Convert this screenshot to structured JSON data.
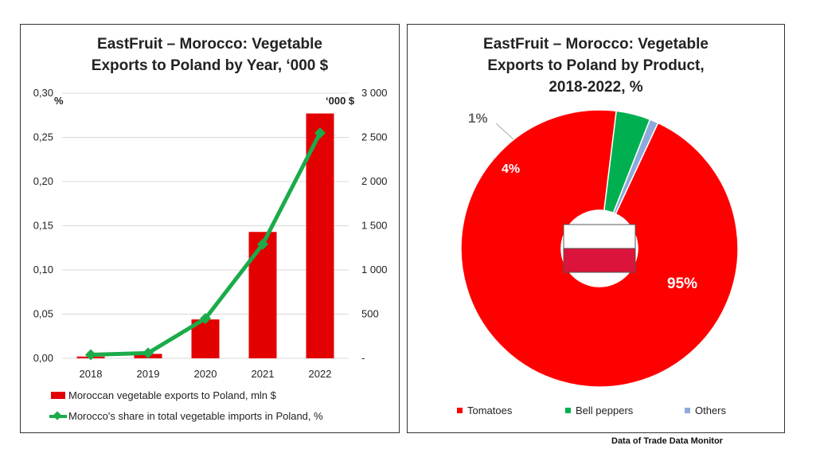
{
  "left_chart": {
    "title_line1": "EastFruit – Morocco: Vegetable",
    "title_line2": "Exports to Poland by Year, ‘000 $",
    "left_axis_unit": "%",
    "right_axis_unit": "‘000 $",
    "left_ticks": [
      "0,00",
      "0,05",
      "0,10",
      "0,15",
      "0,20",
      "0,25",
      "0,30"
    ],
    "right_ticks": [
      "-",
      "500",
      "1 000",
      "1 500",
      "2 000",
      "2 500",
      "3 000"
    ],
    "legend_bar": "Moroccan vegetable exports to Poland, mln $",
    "legend_line": "Morocco's share in total vegetable imports in Poland, %"
  },
  "right_chart": {
    "title_line1": "EastFruit – Morocco: Vegetable",
    "title_line2": "Exports to Poland by Product,",
    "title_line3": "2018-2022, %",
    "label_tomatoes": "95%",
    "label_peppers": "4%",
    "label_others": "1%",
    "legend": [
      "Tomatoes",
      "Bell peppers",
      "Others"
    ]
  },
  "source_note": "Data of Trade Data Monitor",
  "colors": {
    "bar": "#e30000",
    "line": "#1bab4a",
    "tomatoes": "#ff0000",
    "peppers": "#00b050",
    "others": "#8eaadb",
    "flag_red": "#dc143c"
  },
  "chart_data": [
    {
      "type": "bar",
      "categories": [
        "2018",
        "2019",
        "2020",
        "2021",
        "2022"
      ],
      "series": [
        {
          "name": "Moroccan vegetable exports to Poland, mln $",
          "axis": "right",
          "values": [
            20,
            50,
            440,
            1430,
            2770
          ]
        },
        {
          "name": "Morocco's share in total vegetable imports in Poland, %",
          "type": "line",
          "axis": "left",
          "values": [
            0.004,
            0.006,
            0.045,
            0.129,
            0.255
          ]
        }
      ],
      "ylim_left": [
        0,
        0.3
      ],
      "ylim_right": [
        0,
        3000
      ],
      "grid": true,
      "legend": "bottom"
    },
    {
      "type": "pie",
      "donut": true,
      "categories": [
        "Tomatoes",
        "Bell peppers",
        "Others"
      ],
      "values": [
        95,
        4,
        1
      ],
      "legend": "bottom"
    }
  ]
}
